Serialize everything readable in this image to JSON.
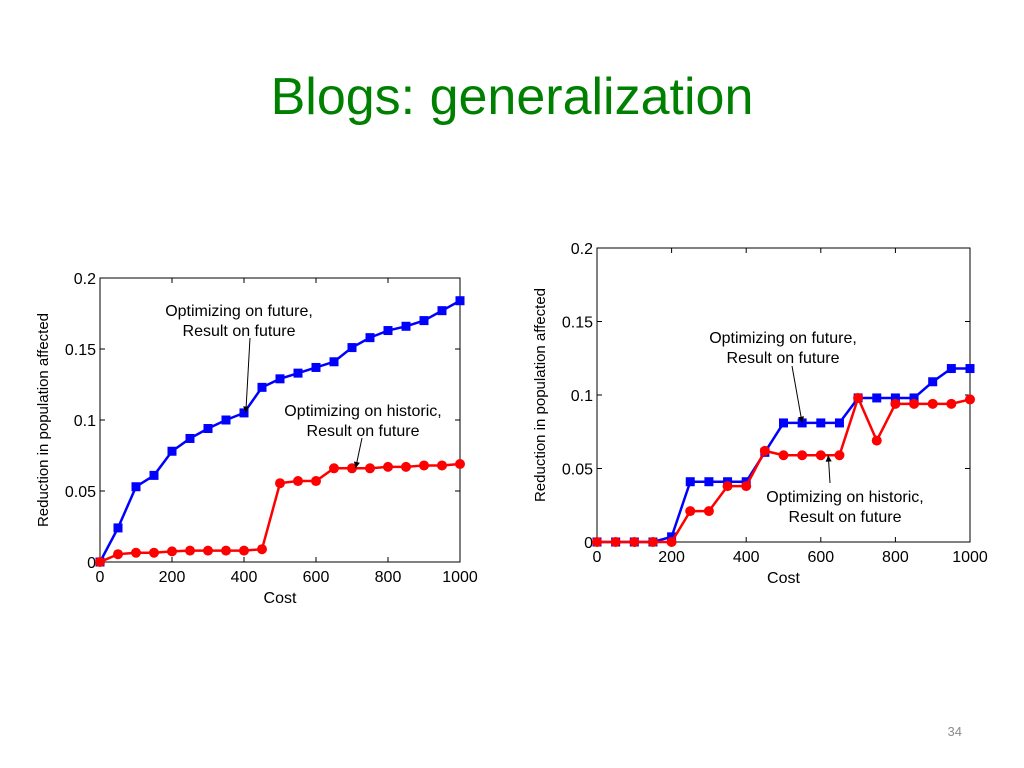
{
  "slide": {
    "title": "Blogs: generalization",
    "page_number": "34"
  },
  "colors": {
    "title": "#008000",
    "future": "#0000ff",
    "historic": "#ff0000"
  },
  "chart_data": [
    {
      "type": "line",
      "title": "",
      "xlabel": "Cost",
      "ylabel": "Reduction in population affected",
      "xlim": [
        0,
        1000
      ],
      "ylim": [
        0,
        0.2
      ],
      "xticks": [
        "0",
        "200",
        "400",
        "600",
        "800",
        "1000"
      ],
      "yticks": [
        "0",
        "0.05",
        "0.1",
        "0.15",
        "0.2"
      ],
      "grid": false,
      "series": [
        {
          "color": "#0000ff",
          "marker": "square",
          "x": [
            0,
            50,
            100,
            150,
            200,
            250,
            300,
            350,
            400,
            450,
            500,
            550,
            600,
            650,
            700,
            750,
            800,
            850,
            900,
            950,
            1000
          ],
          "y": [
            0,
            0.024,
            0.053,
            0.061,
            0.078,
            0.087,
            0.094,
            0.1,
            0.105,
            0.123,
            0.129,
            0.133,
            0.137,
            0.141,
            0.151,
            0.158,
            0.163,
            0.166,
            0.17,
            0.177,
            0.184
          ]
        },
        {
          "color": "#ff0000",
          "marker": "circle",
          "x": [
            0,
            50,
            100,
            150,
            200,
            250,
            300,
            350,
            400,
            450,
            500,
            550,
            600,
            650,
            700,
            750,
            800,
            850,
            900,
            950,
            1000
          ],
          "y": [
            0,
            0.0055,
            0.0065,
            0.0065,
            0.0075,
            0.008,
            0.008,
            0.008,
            0.008,
            0.009,
            0.0555,
            0.057,
            0.057,
            0.066,
            0.066,
            0.066,
            0.067,
            0.067,
            0.068,
            0.068,
            0.069
          ]
        }
      ],
      "annotations": [
        {
          "text": [
            "Optimizing on future,",
            "Result on future"
          ],
          "arrow_to": [
            405,
            0.105
          ]
        },
        {
          "text": [
            "Optimizing on historic,",
            "Result on future"
          ],
          "arrow_to": [
            710,
            0.066
          ]
        }
      ]
    },
    {
      "type": "line",
      "title": "",
      "xlabel": "Cost",
      "ylabel": "Reduction in population affected",
      "xlim": [
        0,
        1000
      ],
      "ylim": [
        0,
        0.2
      ],
      "xticks": [
        "0",
        "200",
        "400",
        "600",
        "800",
        "1000"
      ],
      "yticks": [
        "0",
        "0.05",
        "0.1",
        "0.15",
        "0.2"
      ],
      "grid": false,
      "series": [
        {
          "color": "#0000ff",
          "marker": "square",
          "x": [
            0,
            50,
            100,
            150,
            200,
            250,
            300,
            350,
            400,
            450,
            500,
            550,
            600,
            650,
            700,
            750,
            800,
            850,
            900,
            950,
            1000
          ],
          "y": [
            0,
            0,
            0,
            0,
            0.0035,
            0.041,
            0.041,
            0.041,
            0.041,
            0.061,
            0.081,
            0.081,
            0.081,
            0.081,
            0.098,
            0.098,
            0.098,
            0.098,
            0.109,
            0.118,
            0.118
          ]
        },
        {
          "color": "#ff0000",
          "marker": "circle",
          "x": [
            0,
            50,
            100,
            150,
            200,
            250,
            300,
            350,
            400,
            450,
            500,
            550,
            600,
            650,
            700,
            750,
            800,
            850,
            900,
            950,
            1000
          ],
          "y": [
            0,
            0,
            0,
            0,
            0,
            0.021,
            0.021,
            0.038,
            0.038,
            0.062,
            0.059,
            0.059,
            0.059,
            0.059,
            0.098,
            0.069,
            0.094,
            0.094,
            0.094,
            0.094,
            0.097
          ]
        }
      ],
      "annotations": [
        {
          "text": [
            "Optimizing on future,",
            "Result on future"
          ],
          "arrow_to": [
            550,
            0.081
          ]
        },
        {
          "text": [
            "Optimizing on historic,",
            "Result on future"
          ],
          "arrow_to": [
            620,
            0.059
          ]
        }
      ]
    }
  ]
}
